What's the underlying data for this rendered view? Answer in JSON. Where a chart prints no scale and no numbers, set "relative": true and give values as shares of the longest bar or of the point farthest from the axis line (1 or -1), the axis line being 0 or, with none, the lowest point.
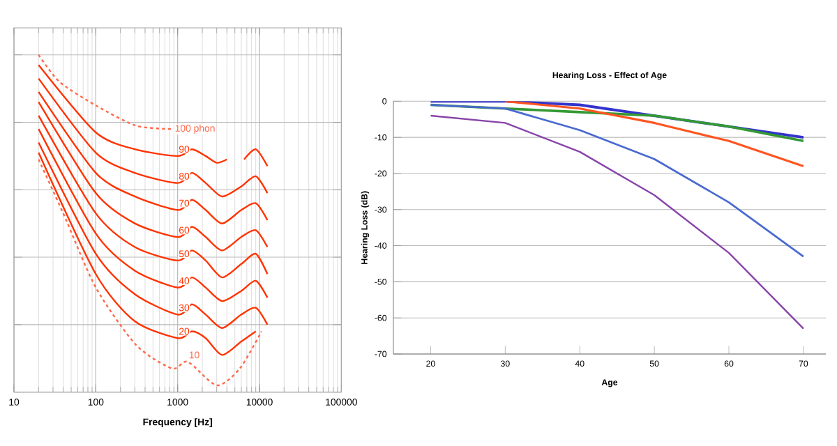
{
  "chart_data": [
    {
      "type": "line",
      "relative": true,
      "log": "x",
      "xlim": [
        10,
        100000
      ],
      "xticks": [
        10,
        100,
        1000,
        10000,
        100000
      ],
      "xlabel": "Frequency [Hz]",
      "grid": true,
      "tick_labels": "x",
      "series": [
        {
          "name": "100 phon",
          "color": "#ff6a4d",
          "line_style": "dashed",
          "x": [
            20,
            36,
            100,
            310,
            850
          ],
          "values": [
            1.0,
            0.92,
            0.85,
            0.79,
            0.78
          ]
        },
        {
          "name": "90",
          "color": "#ff3300",
          "x": [
            20,
            100,
            300,
            1000,
            1500,
            2200,
            3000,
            4000,
            5000,
            6500,
            9000,
            12500
          ],
          "values": [
            0.97,
            0.77,
            0.72,
            0.7,
            0.72,
            0.7,
            0.68,
            0.69,
            null,
            0.69,
            0.72,
            0.67
          ]
        },
        {
          "name": "80",
          "color": "#ff3300",
          "x": [
            20,
            100,
            300,
            1000,
            1500,
            2200,
            3500,
            6000,
            9000,
            12500
          ],
          "values": [
            0.93,
            0.71,
            0.65,
            0.62,
            0.65,
            0.62,
            0.58,
            0.61,
            0.64,
            0.59
          ]
        },
        {
          "name": "70",
          "color": "#ff3300",
          "x": [
            20,
            100,
            300,
            1000,
            1500,
            2200,
            3500,
            6000,
            9000,
            12500
          ],
          "values": [
            0.89,
            0.65,
            0.58,
            0.54,
            0.57,
            0.54,
            0.5,
            0.54,
            0.56,
            0.51
          ]
        },
        {
          "name": "60",
          "color": "#ff3300",
          "x": [
            20,
            100,
            300,
            1000,
            1500,
            2200,
            3500,
            6000,
            9000,
            12500
          ],
          "values": [
            0.86,
            0.59,
            0.5,
            0.46,
            0.49,
            0.46,
            0.42,
            0.46,
            0.48,
            0.43
          ]
        },
        {
          "name": "50",
          "color": "#ff3300",
          "x": [
            20,
            100,
            300,
            1000,
            1500,
            2200,
            3500,
            6000,
            9000,
            12500
          ],
          "values": [
            0.82,
            0.53,
            0.43,
            0.39,
            0.42,
            0.39,
            0.34,
            0.38,
            0.41,
            0.35
          ]
        },
        {
          "name": "40",
          "color": "#ff3300",
          "x": [
            20,
            100,
            300,
            1000,
            1500,
            2200,
            3500,
            6000,
            9000,
            12500
          ],
          "values": [
            0.78,
            0.47,
            0.36,
            0.31,
            0.34,
            0.31,
            0.27,
            0.3,
            0.33,
            0.28
          ]
        },
        {
          "name": "30",
          "color": "#ff3300",
          "x": [
            20,
            100,
            300,
            1000,
            1500,
            2200,
            3500,
            6000,
            9000,
            12500
          ],
          "values": [
            0.74,
            0.41,
            0.29,
            0.23,
            0.26,
            0.23,
            0.19,
            0.23,
            0.25,
            0.2
          ]
        },
        {
          "name": "20",
          "color": "#ff3300",
          "x": [
            20,
            100,
            300,
            1000,
            1500,
            2200,
            3500,
            6000,
            9000
          ],
          "values": [
            0.71,
            0.35,
            0.21,
            0.16,
            0.18,
            0.16,
            0.11,
            0.15,
            0.18
          ]
        },
        {
          "name": "10",
          "color": "#ff6a4d",
          "line_style": "dashed",
          "x": [
            20,
            40,
            100,
            310,
            850,
            1330,
            3000,
            5750,
            10600
          ],
          "values": [
            0.69,
            0.53,
            0.31,
            0.14,
            0.07,
            0.09,
            0.02,
            0.07,
            0.18
          ]
        }
      ]
    },
    {
      "type": "line",
      "title": "Hearing Loss - Effect of Age",
      "xlabel": "Age",
      "ylabel": "Hearing Loss (dB)",
      "categories": [
        "20",
        "30",
        "40",
        "50",
        "60",
        "70"
      ],
      "ylim": [
        -70,
        0
      ],
      "yticks": [
        -70,
        -60,
        -50,
        -40,
        -30,
        -20,
        -10,
        0
      ],
      "grid": "y",
      "series": [
        {
          "color": "#3333cc",
          "values": [
            0,
            0,
            -1,
            -4,
            -7,
            -10
          ]
        },
        {
          "color": "#339933",
          "values": [
            -1,
            -2,
            -3,
            -4,
            -7,
            -11
          ]
        },
        {
          "color": "#ff5522",
          "values": [
            null,
            0,
            -2,
            -6,
            -11,
            -18
          ]
        },
        {
          "color": "#4a6ad0",
          "values": [
            -1,
            -2,
            -8,
            -16,
            -28,
            -43
          ]
        },
        {
          "color": "#8844aa",
          "values": [
            -4,
            -6,
            -14,
            -26,
            -42,
            -63
          ]
        }
      ]
    }
  ]
}
